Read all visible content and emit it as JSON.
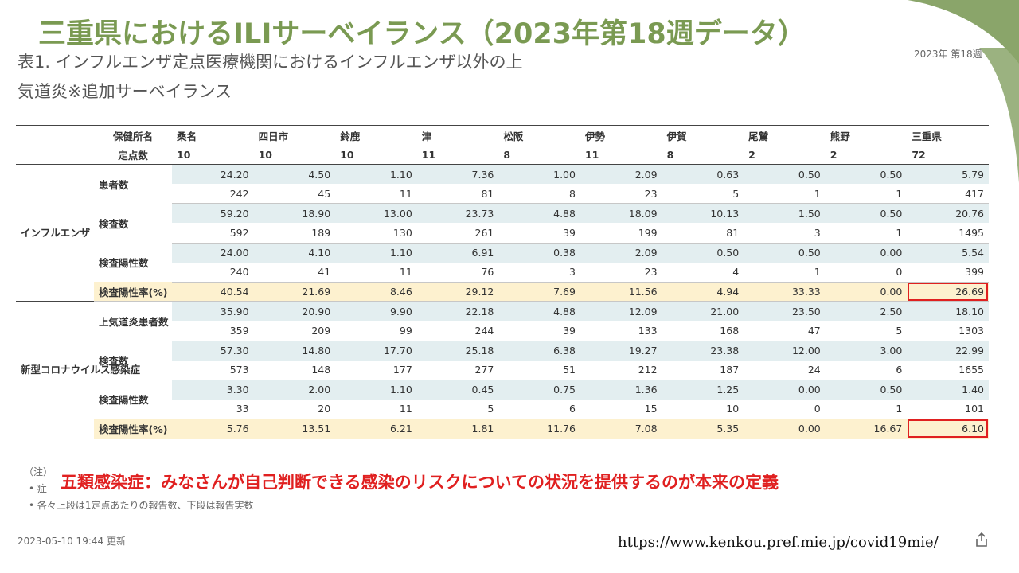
{
  "slide": {
    "title": "三重県におけるILIサーベイランス（2023年第18週データ）",
    "table_heading": "表1. インフルエンザ定点医療機関におけるインフルエンザ以外の上気道炎※追加サーベイランス",
    "week_label": "2023年 第18週",
    "accent_color": "#7a9a52"
  },
  "table": {
    "header_label_office": "保健所名",
    "header_label_sites": "定点数",
    "columns": [
      {
        "name": "桑名",
        "sites": "10"
      },
      {
        "name": "四日市",
        "sites": "10"
      },
      {
        "name": "鈴鹿",
        "sites": "10"
      },
      {
        "name": "津",
        "sites": "11"
      },
      {
        "name": "松阪",
        "sites": "8"
      },
      {
        "name": "伊勢",
        "sites": "11"
      },
      {
        "name": "伊賀",
        "sites": "8"
      },
      {
        "name": "尾鷲",
        "sites": "2"
      },
      {
        "name": "熊野",
        "sites": "2"
      },
      {
        "name": "三重県",
        "sites": "72"
      }
    ],
    "groups": [
      {
        "name": "インフルエンザ",
        "metrics": [
          {
            "label": "患者数",
            "per_site": [
              "24.20",
              "4.50",
              "1.10",
              "7.36",
              "1.00",
              "2.09",
              "0.63",
              "0.50",
              "0.50",
              "5.79"
            ],
            "count": [
              "242",
              "45",
              "11",
              "81",
              "8",
              "23",
              "5",
              "1",
              "1",
              "417"
            ]
          },
          {
            "label": "検査数",
            "per_site": [
              "59.20",
              "18.90",
              "13.00",
              "23.73",
              "4.88",
              "18.09",
              "10.13",
              "1.50",
              "0.50",
              "20.76"
            ],
            "count": [
              "592",
              "189",
              "130",
              "261",
              "39",
              "199",
              "81",
              "3",
              "1",
              "1495"
            ]
          },
          {
            "label": "検査陽性数",
            "per_site": [
              "24.00",
              "4.10",
              "1.10",
              "6.91",
              "0.38",
              "2.09",
              "0.50",
              "0.50",
              "0.00",
              "5.54"
            ],
            "count": [
              "240",
              "41",
              "11",
              "76",
              "3",
              "23",
              "4",
              "1",
              "0",
              "399"
            ]
          }
        ],
        "rate": {
          "label": "検査陽性率(%)",
          "values": [
            "40.54",
            "21.69",
            "8.46",
            "29.12",
            "7.69",
            "11.56",
            "4.94",
            "33.33",
            "0.00",
            "26.69"
          ]
        }
      },
      {
        "name": "新型コロナウイルス感染症",
        "metrics": [
          {
            "label": "上気道炎患者数",
            "per_site": [
              "35.90",
              "20.90",
              "9.90",
              "22.18",
              "4.88",
              "12.09",
              "21.00",
              "23.50",
              "2.50",
              "18.10"
            ],
            "count": [
              "359",
              "209",
              "99",
              "244",
              "39",
              "133",
              "168",
              "47",
              "5",
              "1303"
            ]
          },
          {
            "label": "検査数",
            "per_site": [
              "57.30",
              "14.80",
              "17.70",
              "25.18",
              "6.38",
              "19.27",
              "23.38",
              "12.00",
              "3.00",
              "22.99"
            ],
            "count": [
              "573",
              "148",
              "177",
              "277",
              "51",
              "212",
              "187",
              "24",
              "6",
              "1655"
            ]
          },
          {
            "label": "検査陽性数",
            "per_site": [
              "3.30",
              "2.00",
              "1.10",
              "0.45",
              "0.75",
              "1.36",
              "1.25",
              "0.00",
              "0.50",
              "1.40"
            ],
            "count": [
              "33",
              "20",
              "11",
              "5",
              "6",
              "15",
              "10",
              "0",
              "1",
              "101"
            ]
          }
        ],
        "rate": {
          "label": "検査陽性率(%)",
          "values": [
            "5.76",
            "13.51",
            "6.21",
            "1.81",
            "11.76",
            "7.08",
            "5.35",
            "0.00",
            "16.67",
            "6.10"
          ]
        }
      }
    ],
    "highlight_color": "#e02020"
  },
  "notes": {
    "label": "（注）",
    "bullet1": "症",
    "bullet2": "各々上段は1定点あたりの報告数、下段は報告実数",
    "red_note": "五類感染症：みなさんが自己判断できる感染のリスクについての状況を提供するのが本来の定義"
  },
  "footer": {
    "updated": "2023-05-10 19:44 更新",
    "source_url": "https://www.kenkou.pref.mie.jp/covid19mie/",
    "share_icon": "share-icon"
  }
}
